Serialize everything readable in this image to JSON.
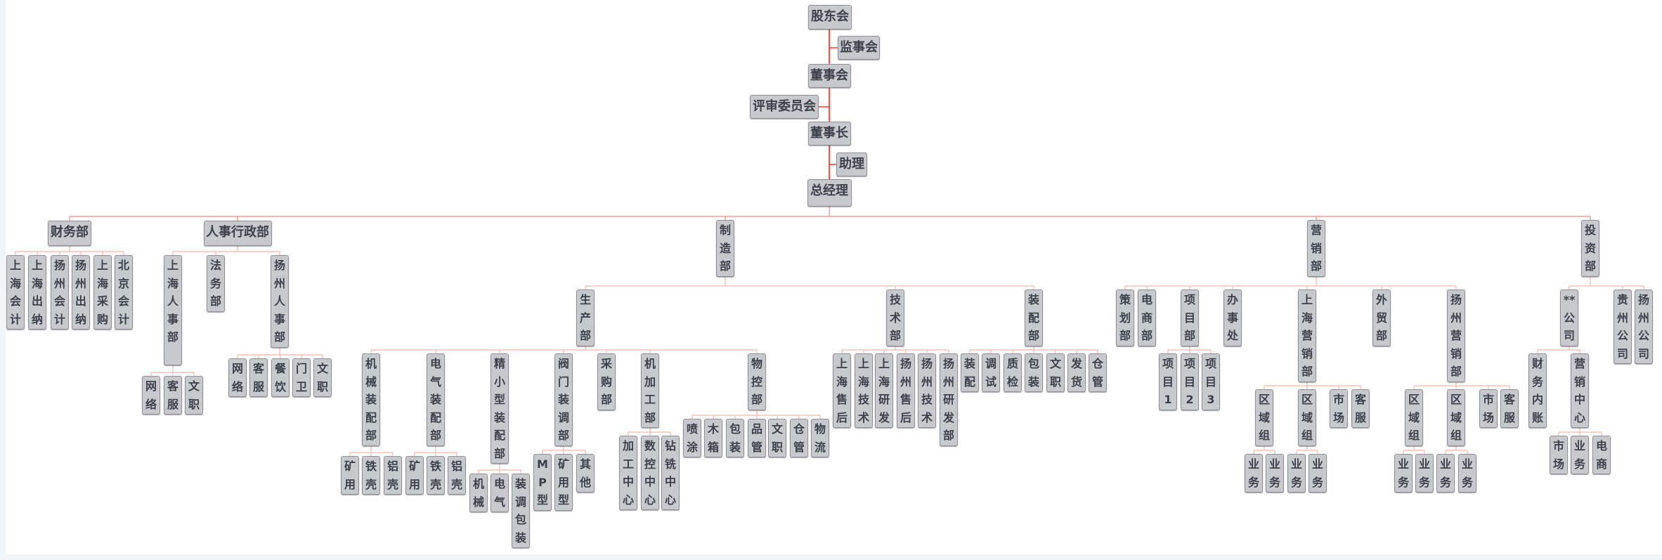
{
  "colors": {
    "node_fill": "#c8c9cd",
    "node_border": "#8f9196",
    "text": "#3d4249",
    "trunk_line": "#ff3b3b",
    "main_bus_line": "#f08a7a",
    "branch_line": "#f6b6aa"
  },
  "nodes": [
    {
      "label": "股东会",
      "parent": null
    },
    {
      "label": "监事会",
      "parent": 0
    },
    {
      "label": "董事会",
      "parent": 0
    },
    {
      "label": "评审委员会",
      "parent": 2
    },
    {
      "label": "董事长",
      "parent": 2
    },
    {
      "label": "助理",
      "parent": 4
    },
    {
      "label": "总经理",
      "parent": 4
    },
    {
      "label": "财务部",
      "parent": 6
    },
    {
      "label": "人事行政部",
      "parent": 6
    },
    {
      "label": "制造部",
      "parent": 6
    },
    {
      "label": "营销部",
      "parent": 6
    },
    {
      "label": "投资部",
      "parent": 6
    },
    {
      "label": "上海会计",
      "parent": 7
    },
    {
      "label": "上海出纳",
      "parent": 7
    },
    {
      "label": "扬州会计",
      "parent": 7
    },
    {
      "label": "扬州出纳",
      "parent": 7
    },
    {
      "label": "上海采购",
      "parent": 7
    },
    {
      "label": "北京会计",
      "parent": 7
    },
    {
      "label": "上海人事部",
      "parent": 8
    },
    {
      "label": "法务部",
      "parent": 8
    },
    {
      "label": "扬州人事部",
      "parent": 8
    },
    {
      "label": "网络",
      "parent": 18
    },
    {
      "label": "客服",
      "parent": 18
    },
    {
      "label": "文职",
      "parent": 18
    },
    {
      "label": "网络",
      "parent": 20
    },
    {
      "label": "客服",
      "parent": 20
    },
    {
      "label": "餐饮",
      "parent": 20
    },
    {
      "label": "门卫",
      "parent": 20
    },
    {
      "label": "文职",
      "parent": 20
    },
    {
      "label": "生产部",
      "parent": 9
    },
    {
      "label": "技术部",
      "parent": 9
    },
    {
      "label": "装配部",
      "parent": 9
    },
    {
      "label": "机械装配部",
      "parent": 29
    },
    {
      "label": "电气装配部",
      "parent": 29
    },
    {
      "label": "精小型装配部",
      "parent": 29
    },
    {
      "label": "阀门装调部",
      "parent": 29
    },
    {
      "label": "采购部",
      "parent": 29
    },
    {
      "label": "机加工部",
      "parent": 29
    },
    {
      "label": "物控部",
      "parent": 29
    },
    {
      "label": "矿用",
      "parent": 32
    },
    {
      "label": "铁壳",
      "parent": 32
    },
    {
      "label": "铝壳",
      "parent": 32
    },
    {
      "label": "矿用",
      "parent": 33
    },
    {
      "label": "铁壳",
      "parent": 33
    },
    {
      "label": "铝壳",
      "parent": 33
    },
    {
      "label": "机械",
      "parent": 34
    },
    {
      "label": "电气",
      "parent": 34
    },
    {
      "label": "装调包装",
      "parent": 34
    },
    {
      "label": "MP型",
      "parent": 35
    },
    {
      "label": "矿用型",
      "parent": 35
    },
    {
      "label": "其他",
      "parent": 35
    },
    {
      "label": "加工中心",
      "parent": 37
    },
    {
      "label": "数控中心",
      "parent": 37
    },
    {
      "label": "钻铣中心",
      "parent": 37
    },
    {
      "label": "喷涂",
      "parent": 38
    },
    {
      "label": "木箱",
      "parent": 38
    },
    {
      "label": "包装",
      "parent": 38
    },
    {
      "label": "品管",
      "parent": 38
    },
    {
      "label": "文职",
      "parent": 38
    },
    {
      "label": "仓管",
      "parent": 38
    },
    {
      "label": "物流",
      "parent": 38
    },
    {
      "label": "上海售后",
      "parent": 30
    },
    {
      "label": "上海技术",
      "parent": 30
    },
    {
      "label": "上海研发",
      "parent": 30
    },
    {
      "label": "扬州售后",
      "parent": 30
    },
    {
      "label": "扬州技术",
      "parent": 30
    },
    {
      "label": "扬州研发部",
      "parent": 30
    },
    {
      "label": "装配",
      "parent": 31
    },
    {
      "label": "调试",
      "parent": 31
    },
    {
      "label": "质检",
      "parent": 31
    },
    {
      "label": "包装",
      "parent": 31
    },
    {
      "label": "文职",
      "parent": 31
    },
    {
      "label": "发货",
      "parent": 31
    },
    {
      "label": "仓管",
      "parent": 31
    },
    {
      "label": "策划部",
      "parent": 10
    },
    {
      "label": "电商部",
      "parent": 10
    },
    {
      "label": "项目部",
      "parent": 10
    },
    {
      "label": "办事处",
      "parent": 10
    },
    {
      "label": "上海营销部",
      "parent": 10
    },
    {
      "label": "外贸部",
      "parent": 10
    },
    {
      "label": "扬州营销部",
      "parent": 10
    },
    {
      "label": "项目1",
      "parent": 76
    },
    {
      "label": "项目2",
      "parent": 76
    },
    {
      "label": "项目3",
      "parent": 76
    },
    {
      "label": "区域组",
      "parent": 78
    },
    {
      "label": "区域组",
      "parent": 78
    },
    {
      "label": "市场",
      "parent": 78
    },
    {
      "label": "客服",
      "parent": 78
    },
    {
      "label": "业务",
      "parent": 84
    },
    {
      "label": "业务",
      "parent": 84
    },
    {
      "label": "业务",
      "parent": 85
    },
    {
      "label": "业务",
      "parent": 85
    },
    {
      "label": "区域组",
      "parent": 80
    },
    {
      "label": "区域组",
      "parent": 80
    },
    {
      "label": "市场",
      "parent": 80
    },
    {
      "label": "客服",
      "parent": 80
    },
    {
      "label": "业务",
      "parent": 92
    },
    {
      "label": "业务",
      "parent": 92
    },
    {
      "label": "业务",
      "parent": 93
    },
    {
      "label": "业务",
      "parent": 93
    },
    {
      "label": "**公司",
      "parent": 11
    },
    {
      "label": "贵州公司",
      "parent": 11
    },
    {
      "label": "扬州公司",
      "parent": 11
    },
    {
      "label": "财务内账",
      "parent": 100
    },
    {
      "label": "营销中心",
      "parent": 100
    },
    {
      "label": "市场",
      "parent": 104
    },
    {
      "label": "业务",
      "parent": 104
    },
    {
      "label": "电商",
      "parent": 104
    }
  ]
}
